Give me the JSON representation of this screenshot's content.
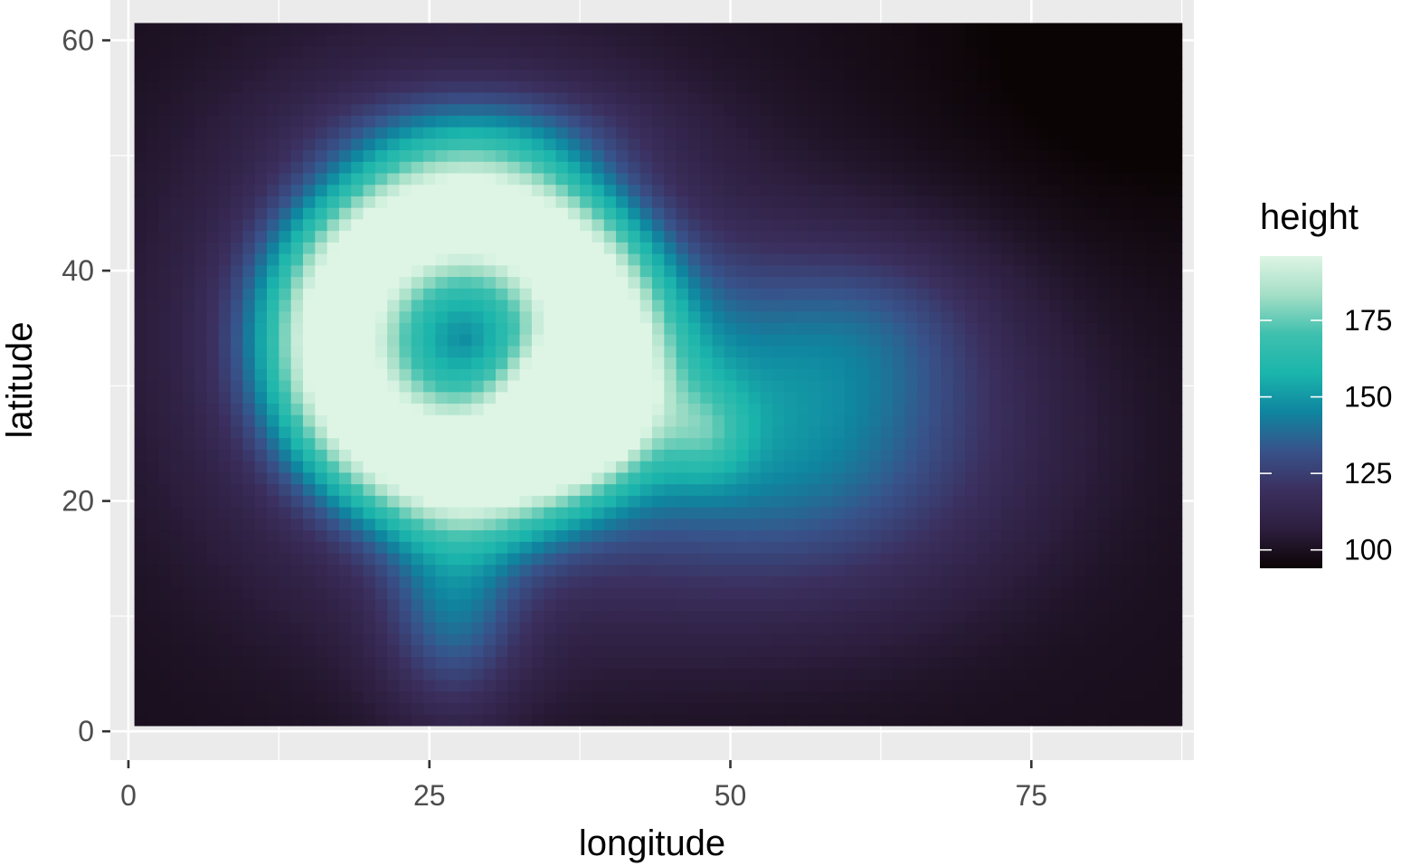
{
  "chart_data": {
    "type": "heatmap",
    "title": "",
    "xlabel": "longitude",
    "ylabel": "latitude",
    "xlim": [
      -1.5,
      88.5
    ],
    "ylim": [
      -2.5,
      63.5
    ],
    "x_ticks": [
      0,
      25,
      50,
      75
    ],
    "x_tick_labels": [
      "0",
      "25",
      "50",
      "75"
    ],
    "y_ticks": [
      0,
      20,
      40,
      60
    ],
    "y_tick_labels": [
      "0",
      "20",
      "40",
      "60"
    ],
    "grid": true,
    "grid_minor": true,
    "data_extent": {
      "x": [
        0.5,
        87.5
      ],
      "y": [
        0.5,
        61.5
      ]
    },
    "legend": {
      "title": "height",
      "position": "right",
      "range": [
        94,
        196
      ],
      "ticks": [
        100,
        125,
        150,
        175
      ],
      "tick_labels": [
        "100",
        "125",
        "150",
        "175"
      ]
    },
    "colors": {
      "panel_background": "#ebebeb",
      "grid": "#ffffff",
      "tick": "#333333",
      "scale": [
        "#0b0405",
        "#2d1e3e",
        "#3b2f5e",
        "#38528a",
        "#0f85a0",
        "#1bb5ac",
        "#3ec0ae",
        "#a4dec6",
        "#def5e5"
      ]
    },
    "surface": {
      "base": 99,
      "features": [
        {
          "name": "ring",
          "x": 28,
          "y": 34,
          "radius": 11,
          "width": 4.5,
          "amp": 82
        },
        {
          "name": "ring-east-arm",
          "x": 37,
          "y": 28,
          "sx": 4,
          "sy": 3.5,
          "amp": 40
        },
        {
          "name": "ring-halo",
          "x": 27,
          "y": 34,
          "sx": 14,
          "sy": 15,
          "amp": 40
        },
        {
          "name": "east-lobe",
          "x": 55,
          "y": 26,
          "sx": 13,
          "sy": 10,
          "amp": 45
        },
        {
          "name": "east-lobe-north",
          "x": 62,
          "y": 36,
          "sx": 7,
          "sy": 5,
          "amp": 12
        },
        {
          "name": "east-peak",
          "x": 48,
          "y": 26,
          "sx": 2.5,
          "sy": 3,
          "amp": 22
        },
        {
          "name": "south-tail",
          "x": 27,
          "y": 10,
          "sx": 4,
          "sy": 6,
          "amp": 30
        },
        {
          "name": "north-rim",
          "x": 30,
          "y": 52,
          "sx": 9,
          "sy": 3,
          "amp": 15
        },
        {
          "name": "valley-ne",
          "x": 86,
          "y": 60,
          "sx": 13,
          "sy": 11,
          "amp": -9
        }
      ]
    }
  }
}
